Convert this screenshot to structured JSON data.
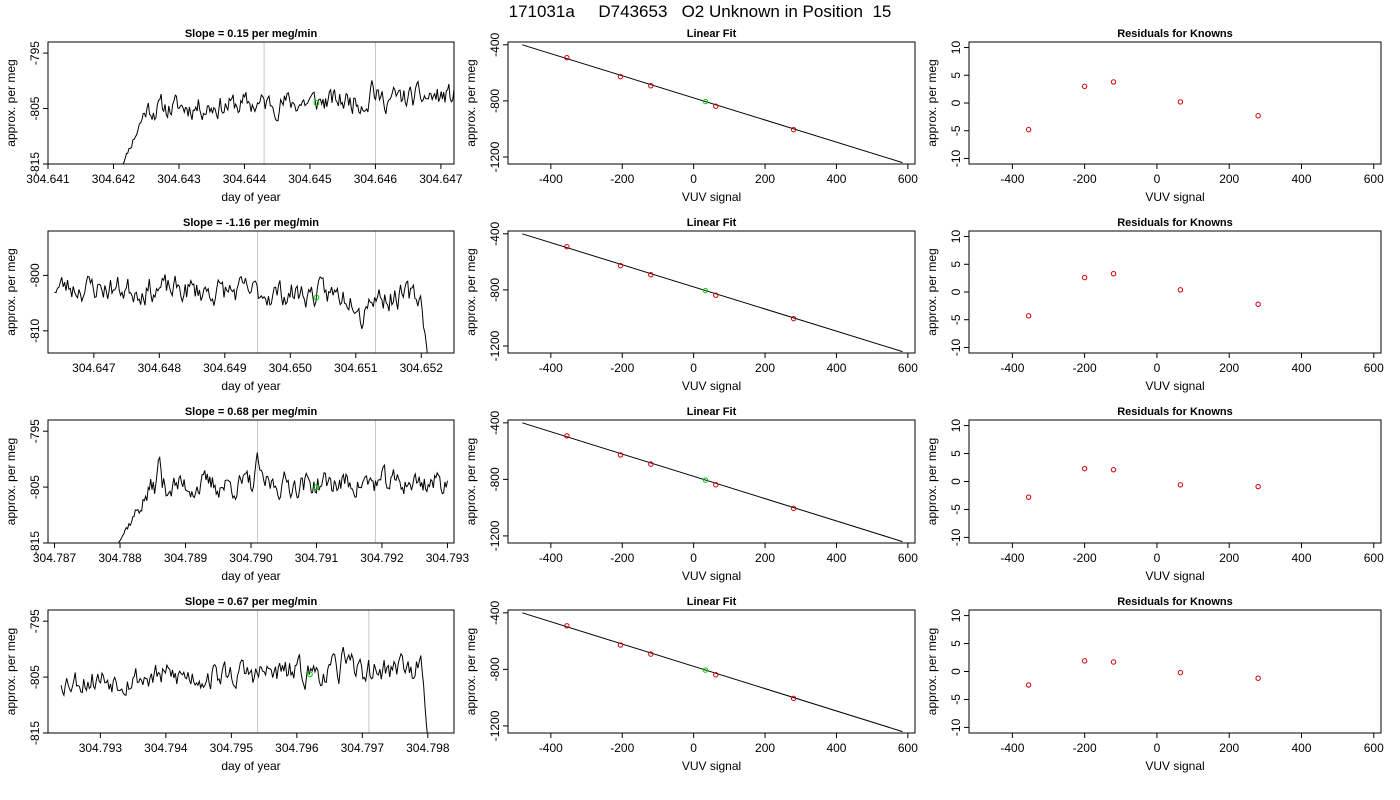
{
  "page_title": "171031a     D743653   O2 Unknown in Position  15",
  "colors": {
    "line": "#000000",
    "known_point": "#cc0000",
    "unknown_point": "#00cc00",
    "vline": "#c8c8c8"
  },
  "chart_data": [
    {
      "type": "line",
      "row": 1,
      "title": "Slope =  0.15  per meg/min",
      "xlabel": "day of year",
      "ylabel": "approx. per meg",
      "xlim": [
        304.641,
        304.6472
      ],
      "ylim": [
        -815,
        -793
      ],
      "xticks": [
        304.641,
        304.642,
        304.643,
        304.644,
        304.645,
        304.646,
        304.647
      ],
      "xtick_labels": [
        "304.641",
        "304.642",
        "304.643",
        "304.644",
        "304.645",
        "304.646",
        "304.647"
      ],
      "yticks": [
        -815,
        -805,
        -795
      ],
      "ytick_labels": [
        "-815",
        "-805",
        "-795"
      ],
      "series_start": 304.6421,
      "series_end": 304.6472,
      "start_level": -816,
      "ramp_end": 304.6425,
      "base_level": -804.0,
      "trend": 1.2,
      "amplitude": 2.3,
      "seed": 11,
      "vlines": [
        304.6443,
        304.646
      ],
      "spikes": [
        {
          "x": 304.64595,
          "y": -799.5
        }
      ],
      "marker": {
        "x": 304.6451,
        "y": -804.0
      }
    },
    {
      "type": "scatter",
      "row": 1,
      "title": "Linear Fit",
      "xlabel": "VUV signal",
      "ylabel": "approx. per meg",
      "xlim": [
        -520,
        620
      ],
      "ylim": [
        -1250,
        -380
      ],
      "xticks": [
        -400,
        -200,
        0,
        200,
        400,
        600
      ],
      "xtick_labels": [
        "-400",
        "-200",
        "0",
        "200",
        "400",
        "600"
      ],
      "yticks": [
        -1200,
        -800,
        -400
      ],
      "ytick_labels": [
        "-1200",
        "-800",
        "-400"
      ],
      "fit_line": {
        "x": [
          -480,
          585
        ],
        "y": [
          -400,
          -1240
        ]
      },
      "knowns": {
        "x": [
          -355,
          -205,
          -120,
          62,
          280
        ],
        "y": [
          -492,
          -627,
          -692,
          -838,
          -1005
        ]
      },
      "unknown": {
        "x": 33,
        "y": -805
      }
    },
    {
      "type": "scatter",
      "row": 1,
      "title": "Residuals for Knowns",
      "xlabel": "VUV signal",
      "ylabel": "approx. per meg",
      "xlim": [
        -520,
        620
      ],
      "ylim": [
        -11,
        11
      ],
      "xticks": [
        -400,
        -200,
        0,
        200,
        400,
        600
      ],
      "xtick_labels": [
        "-400",
        "-200",
        "0",
        "200",
        "400",
        "600"
      ],
      "yticks": [
        -10,
        -5,
        0,
        5,
        10
      ],
      "ytick_labels": [
        "-10",
        "-5",
        "0",
        "5",
        "10"
      ],
      "knowns": {
        "x": [
          -355,
          -200,
          -120,
          65,
          280
        ],
        "y": [
          -4.8,
          3.0,
          3.8,
          0.2,
          -2.3
        ]
      }
    },
    {
      "type": "line",
      "row": 2,
      "title": "Slope =  -1.16  per meg/min",
      "xlabel": "day of year",
      "ylabel": "approx. per meg",
      "xlim": [
        304.6463,
        304.6525
      ],
      "ylim": [
        -814,
        -792
      ],
      "xticks": [
        304.647,
        304.648,
        304.649,
        304.65,
        304.651,
        304.652
      ],
      "xtick_labels": [
        "304.647",
        "304.648",
        "304.649",
        "304.650",
        "304.651",
        "304.652"
      ],
      "yticks": [
        -810,
        -800
      ],
      "ytick_labels": [
        "-810",
        "-800"
      ],
      "series_start": 304.6464,
      "series_end": 304.6521,
      "end_drop": -815,
      "drop_start": 304.652,
      "base_level": -803.0,
      "trend": -1.0,
      "amplitude": 2.6,
      "seed": 23,
      "vlines": [
        304.6495,
        304.6513
      ],
      "spikes": [
        {
          "x": 304.6511,
          "y": -810.5
        }
      ],
      "marker": {
        "x": 304.6504,
        "y": -804.0
      }
    },
    {
      "type": "scatter",
      "row": 2,
      "title": "Linear Fit",
      "xlabel": "VUV signal",
      "ylabel": "approx. per meg",
      "xlim": [
        -520,
        620
      ],
      "ylim": [
        -1250,
        -380
      ],
      "xticks": [
        -400,
        -200,
        0,
        200,
        400,
        600
      ],
      "xtick_labels": [
        "-400",
        "-200",
        "0",
        "200",
        "400",
        "600"
      ],
      "yticks": [
        -1200,
        -800,
        -400
      ],
      "ytick_labels": [
        "-1200",
        "-800",
        "-400"
      ],
      "fit_line": {
        "x": [
          -480,
          585
        ],
        "y": [
          -400,
          -1240
        ]
      },
      "knowns": {
        "x": [
          -355,
          -205,
          -120,
          62,
          280
        ],
        "y": [
          -492,
          -627,
          -692,
          -838,
          -1005
        ]
      },
      "unknown": {
        "x": 33,
        "y": -805
      }
    },
    {
      "type": "scatter",
      "row": 2,
      "title": "Residuals for Knowns",
      "xlabel": "VUV signal",
      "ylabel": "approx. per meg",
      "xlim": [
        -520,
        620
      ],
      "ylim": [
        -11,
        11
      ],
      "xticks": [
        -400,
        -200,
        0,
        200,
        400,
        600
      ],
      "xtick_labels": [
        "-400",
        "-200",
        "0",
        "200",
        "400",
        "600"
      ],
      "yticks": [
        -10,
        -5,
        0,
        5,
        10
      ],
      "ytick_labels": [
        "-10",
        "-5",
        "0",
        "5",
        "10"
      ],
      "knowns": {
        "x": [
          -355,
          -200,
          -120,
          65,
          280
        ],
        "y": [
          -4.3,
          2.6,
          3.3,
          0.4,
          -2.2
        ]
      }
    },
    {
      "type": "line",
      "row": 3,
      "title": "Slope =  0.68  per meg/min",
      "xlabel": "day of year",
      "ylabel": "approx. per meg",
      "xlim": [
        304.7869,
        304.7931
      ],
      "ylim": [
        -815,
        -793
      ],
      "xticks": [
        304.787,
        304.788,
        304.789,
        304.79,
        304.791,
        304.792,
        304.793
      ],
      "xtick_labels": [
        "304.787",
        "304.788",
        "304.789",
        "304.790",
        "304.791",
        "304.792",
        "304.793"
      ],
      "yticks": [
        -815,
        -805,
        -795
      ],
      "ytick_labels": [
        "-815",
        "-805",
        "-795"
      ],
      "series_start": 304.7879,
      "series_end": 304.793,
      "start_level": -816,
      "ramp_end": 304.7885,
      "base_level": -804.5,
      "trend": 0.4,
      "amplitude": 2.4,
      "seed": 37,
      "vlines": [
        304.7901,
        304.7919
      ],
      "spikes": [
        {
          "x": 304.7886,
          "y": -799.0
        },
        {
          "x": 304.7901,
          "y": -798.5
        }
      ],
      "marker": {
        "x": 304.791,
        "y": -805.0
      }
    },
    {
      "type": "scatter",
      "row": 3,
      "title": "Linear Fit",
      "xlabel": "VUV signal",
      "ylabel": "approx. per meg",
      "xlim": [
        -520,
        620
      ],
      "ylim": [
        -1250,
        -380
      ],
      "xticks": [
        -400,
        -200,
        0,
        200,
        400,
        600
      ],
      "xtick_labels": [
        "-400",
        "-200",
        "0",
        "200",
        "400",
        "600"
      ],
      "yticks": [
        -1200,
        -800,
        -400
      ],
      "ytick_labels": [
        "-1200",
        "-800",
        "-400"
      ],
      "fit_line": {
        "x": [
          -480,
          585
        ],
        "y": [
          -400,
          -1240
        ]
      },
      "knowns": {
        "x": [
          -355,
          -205,
          -120,
          62,
          280
        ],
        "y": [
          -492,
          -627,
          -692,
          -838,
          -1005
        ]
      },
      "unknown": {
        "x": 33,
        "y": -805
      }
    },
    {
      "type": "scatter",
      "row": 3,
      "title": "Residuals for Knowns",
      "xlabel": "VUV signal",
      "ylabel": "approx. per meg",
      "xlim": [
        -520,
        620
      ],
      "ylim": [
        -11,
        11
      ],
      "xticks": [
        -400,
        -200,
        0,
        200,
        400,
        600
      ],
      "xtick_labels": [
        "-400",
        "-200",
        "0",
        "200",
        "400",
        "600"
      ],
      "yticks": [
        -10,
        -5,
        0,
        5,
        10
      ],
      "ytick_labels": [
        "-10",
        "-5",
        "0",
        "5",
        "10"
      ],
      "knowns": {
        "x": [
          -355,
          -200,
          -120,
          65,
          280
        ],
        "y": [
          -2.8,
          2.3,
          2.1,
          -0.6,
          -0.9
        ]
      }
    },
    {
      "type": "line",
      "row": 4,
      "title": "Slope =  0.67  per meg/min",
      "xlabel": "day of year",
      "ylabel": "approx. per meg",
      "xlim": [
        304.7922,
        304.7984
      ],
      "ylim": [
        -815,
        -793
      ],
      "xticks": [
        304.793,
        304.794,
        304.795,
        304.796,
        304.797,
        304.798
      ],
      "xtick_labels": [
        "304.793",
        "304.794",
        "304.795",
        "304.796",
        "304.797",
        "304.798"
      ],
      "yticks": [
        -815,
        -805,
        -795
      ],
      "ytick_labels": [
        "-815",
        "-805",
        "-795"
      ],
      "series_start": 304.7924,
      "series_end": 304.798,
      "end_drop": -816,
      "drop_start": 304.7979,
      "base_level": -804.5,
      "trend": 1.0,
      "amplitude": 2.6,
      "seed": 53,
      "vlines": [
        304.7954,
        304.7971
      ],
      "spikes": [
        {
          "x": 304.7967,
          "y": -799.0
        },
        {
          "x": 304.7976,
          "y": -800.0
        }
      ],
      "marker": {
        "x": 304.7962,
        "y": -804.5
      }
    },
    {
      "type": "scatter",
      "row": 4,
      "title": "Linear Fit",
      "xlabel": "VUV signal",
      "ylabel": "approx. per meg",
      "xlim": [
        -520,
        620
      ],
      "ylim": [
        -1250,
        -380
      ],
      "xticks": [
        -400,
        -200,
        0,
        200,
        400,
        600
      ],
      "xtick_labels": [
        "-400",
        "-200",
        "0",
        "200",
        "400",
        "600"
      ],
      "yticks": [
        -1200,
        -800,
        -400
      ],
      "ytick_labels": [
        "-1200",
        "-800",
        "-400"
      ],
      "fit_line": {
        "x": [
          -480,
          585
        ],
        "y": [
          -400,
          -1240
        ]
      },
      "knowns": {
        "x": [
          -355,
          -205,
          -120,
          62,
          280
        ],
        "y": [
          -492,
          -627,
          -692,
          -838,
          -1005
        ]
      },
      "unknown": {
        "x": 33,
        "y": -805
      }
    },
    {
      "type": "scatter",
      "row": 4,
      "title": "Residuals for Knowns",
      "xlabel": "VUV signal",
      "ylabel": "approx. per meg",
      "xlim": [
        -520,
        620
      ],
      "ylim": [
        -11,
        11
      ],
      "xticks": [
        -400,
        -200,
        0,
        200,
        400,
        600
      ],
      "xtick_labels": [
        "-400",
        "-200",
        "0",
        "200",
        "400",
        "600"
      ],
      "yticks": [
        -10,
        -5,
        0,
        5,
        10
      ],
      "ytick_labels": [
        "-10",
        "-5",
        "0",
        "5",
        "10"
      ],
      "knowns": {
        "x": [
          -355,
          -200,
          -120,
          65,
          280
        ],
        "y": [
          -2.4,
          1.9,
          1.7,
          -0.2,
          -1.2
        ]
      }
    }
  ]
}
